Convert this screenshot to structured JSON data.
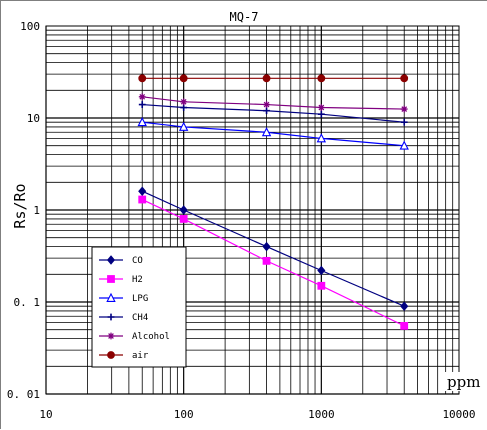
{
  "chart_data": {
    "type": "line",
    "title": "MQ-7",
    "xlabel": "ppm",
    "ylabel": "Rs/Ro",
    "x_scale": "log",
    "y_scale": "log",
    "xlim": [
      10,
      10000
    ],
    "ylim": [
      0.01,
      100
    ],
    "x_ticks": [
      "10",
      "100",
      "1000",
      "10000"
    ],
    "y_ticks": [
      "100",
      "10",
      "1",
      "0. 1",
      "0. 01"
    ],
    "grid": true,
    "legend_position": "lower-left",
    "series": [
      {
        "name": "CO",
        "color": "#000080",
        "marker": "diamond",
        "x": [
          50,
          100,
          400,
          1000,
          4000
        ],
        "y": [
          1.6,
          1.0,
          0.4,
          0.22,
          0.09
        ]
      },
      {
        "name": "H2",
        "color": "#ff00ff",
        "marker": "square",
        "x": [
          50,
          100,
          400,
          1000,
          4000
        ],
        "y": [
          1.3,
          0.8,
          0.28,
          0.15,
          0.055
        ]
      },
      {
        "name": "LPG",
        "color": "#0000ff",
        "marker": "triangle-open",
        "x": [
          50,
          100,
          400,
          1000,
          4000
        ],
        "y": [
          9.0,
          8.0,
          7.0,
          6.0,
          5.0
        ]
      },
      {
        "name": "CH4",
        "color": "#000080",
        "marker": "cross",
        "x": [
          50,
          100,
          400,
          1000,
          4000
        ],
        "y": [
          14.0,
          13.0,
          12.0,
          11.0,
          9.0
        ]
      },
      {
        "name": "Alcohol",
        "color": "#800080",
        "marker": "star",
        "x": [
          50,
          100,
          400,
          1000,
          4000
        ],
        "y": [
          17.0,
          15.0,
          14.0,
          13.0,
          12.5
        ]
      },
      {
        "name": "air",
        "color": "#8b0000",
        "marker": "circle",
        "x": [
          50,
          100,
          400,
          1000,
          4000
        ],
        "y": [
          27.0,
          27.0,
          27.0,
          27.0,
          27.0
        ]
      }
    ]
  }
}
